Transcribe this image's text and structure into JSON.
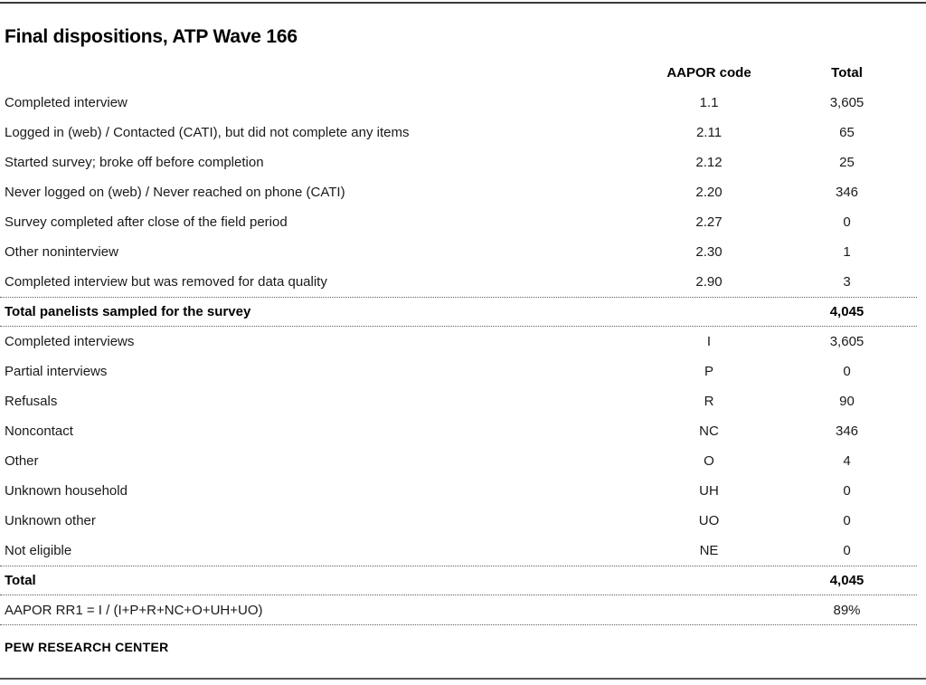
{
  "page": {
    "title": "Final dispositions, ATP Wave 166",
    "footer": "PEW RESEARCH CENTER"
  },
  "table": {
    "columns": {
      "label": "",
      "code": "AAPOR code",
      "total": "Total"
    },
    "rows": [
      {
        "label": "Completed interview",
        "code": "1.1",
        "total": "3,605",
        "bold": false,
        "rule_top": false,
        "rule_bottom": false
      },
      {
        "label": "Logged in (web) / Contacted (CATI), but did not complete any items",
        "code": "2.11",
        "total": "65",
        "bold": false,
        "rule_top": false,
        "rule_bottom": false
      },
      {
        "label": "Started survey; broke off before completion",
        "code": "2.12",
        "total": "25",
        "bold": false,
        "rule_top": false,
        "rule_bottom": false
      },
      {
        "label": "Never logged on (web) / Never reached on phone (CATI)",
        "code": "2.20",
        "total": "346",
        "bold": false,
        "rule_top": false,
        "rule_bottom": false
      },
      {
        "label": "Survey completed after close of the field period",
        "code": "2.27",
        "total": "0",
        "bold": false,
        "rule_top": false,
        "rule_bottom": false
      },
      {
        "label": "Other noninterview",
        "code": "2.30",
        "total": "1",
        "bold": false,
        "rule_top": false,
        "rule_bottom": false
      },
      {
        "label": "Completed interview but was removed for data quality",
        "code": "2.90",
        "total": "3",
        "bold": false,
        "rule_top": false,
        "rule_bottom": false
      },
      {
        "label": "Total panelists sampled for the survey",
        "code": "",
        "total": "4,045",
        "bold": true,
        "rule_top": true,
        "rule_bottom": true
      },
      {
        "label": "Completed interviews",
        "code": "I",
        "total": "3,605",
        "bold": false,
        "rule_top": false,
        "rule_bottom": false
      },
      {
        "label": "Partial interviews",
        "code": "P",
        "total": "0",
        "bold": false,
        "rule_top": false,
        "rule_bottom": false
      },
      {
        "label": "Refusals",
        "code": "R",
        "total": "90",
        "bold": false,
        "rule_top": false,
        "rule_bottom": false
      },
      {
        "label": "Noncontact",
        "code": "NC",
        "total": "346",
        "bold": false,
        "rule_top": false,
        "rule_bottom": false
      },
      {
        "label": "Other",
        "code": "O",
        "total": "4",
        "bold": false,
        "rule_top": false,
        "rule_bottom": false
      },
      {
        "label": "Unknown household",
        "code": "UH",
        "total": "0",
        "bold": false,
        "rule_top": false,
        "rule_bottom": false
      },
      {
        "label": "Unknown other",
        "code": "UO",
        "total": "0",
        "bold": false,
        "rule_top": false,
        "rule_bottom": false
      },
      {
        "label": "Not eligible",
        "code": "NE",
        "total": "0",
        "bold": false,
        "rule_top": false,
        "rule_bottom": false
      },
      {
        "label": "Total",
        "code": "",
        "total": "4,045",
        "bold": true,
        "rule_top": true,
        "rule_bottom": true
      },
      {
        "label": "AAPOR RR1 = I / (I+P+R+NC+O+UH+UO)",
        "code": "",
        "total": "89%",
        "bold": false,
        "rule_top": false,
        "rule_bottom": true
      }
    ]
  },
  "colors": {
    "top_rule": "#3a3a3a",
    "bottom_rule": "#565656",
    "dotted_rule": "#5c5c5c",
    "text": "#1a1a1a"
  }
}
